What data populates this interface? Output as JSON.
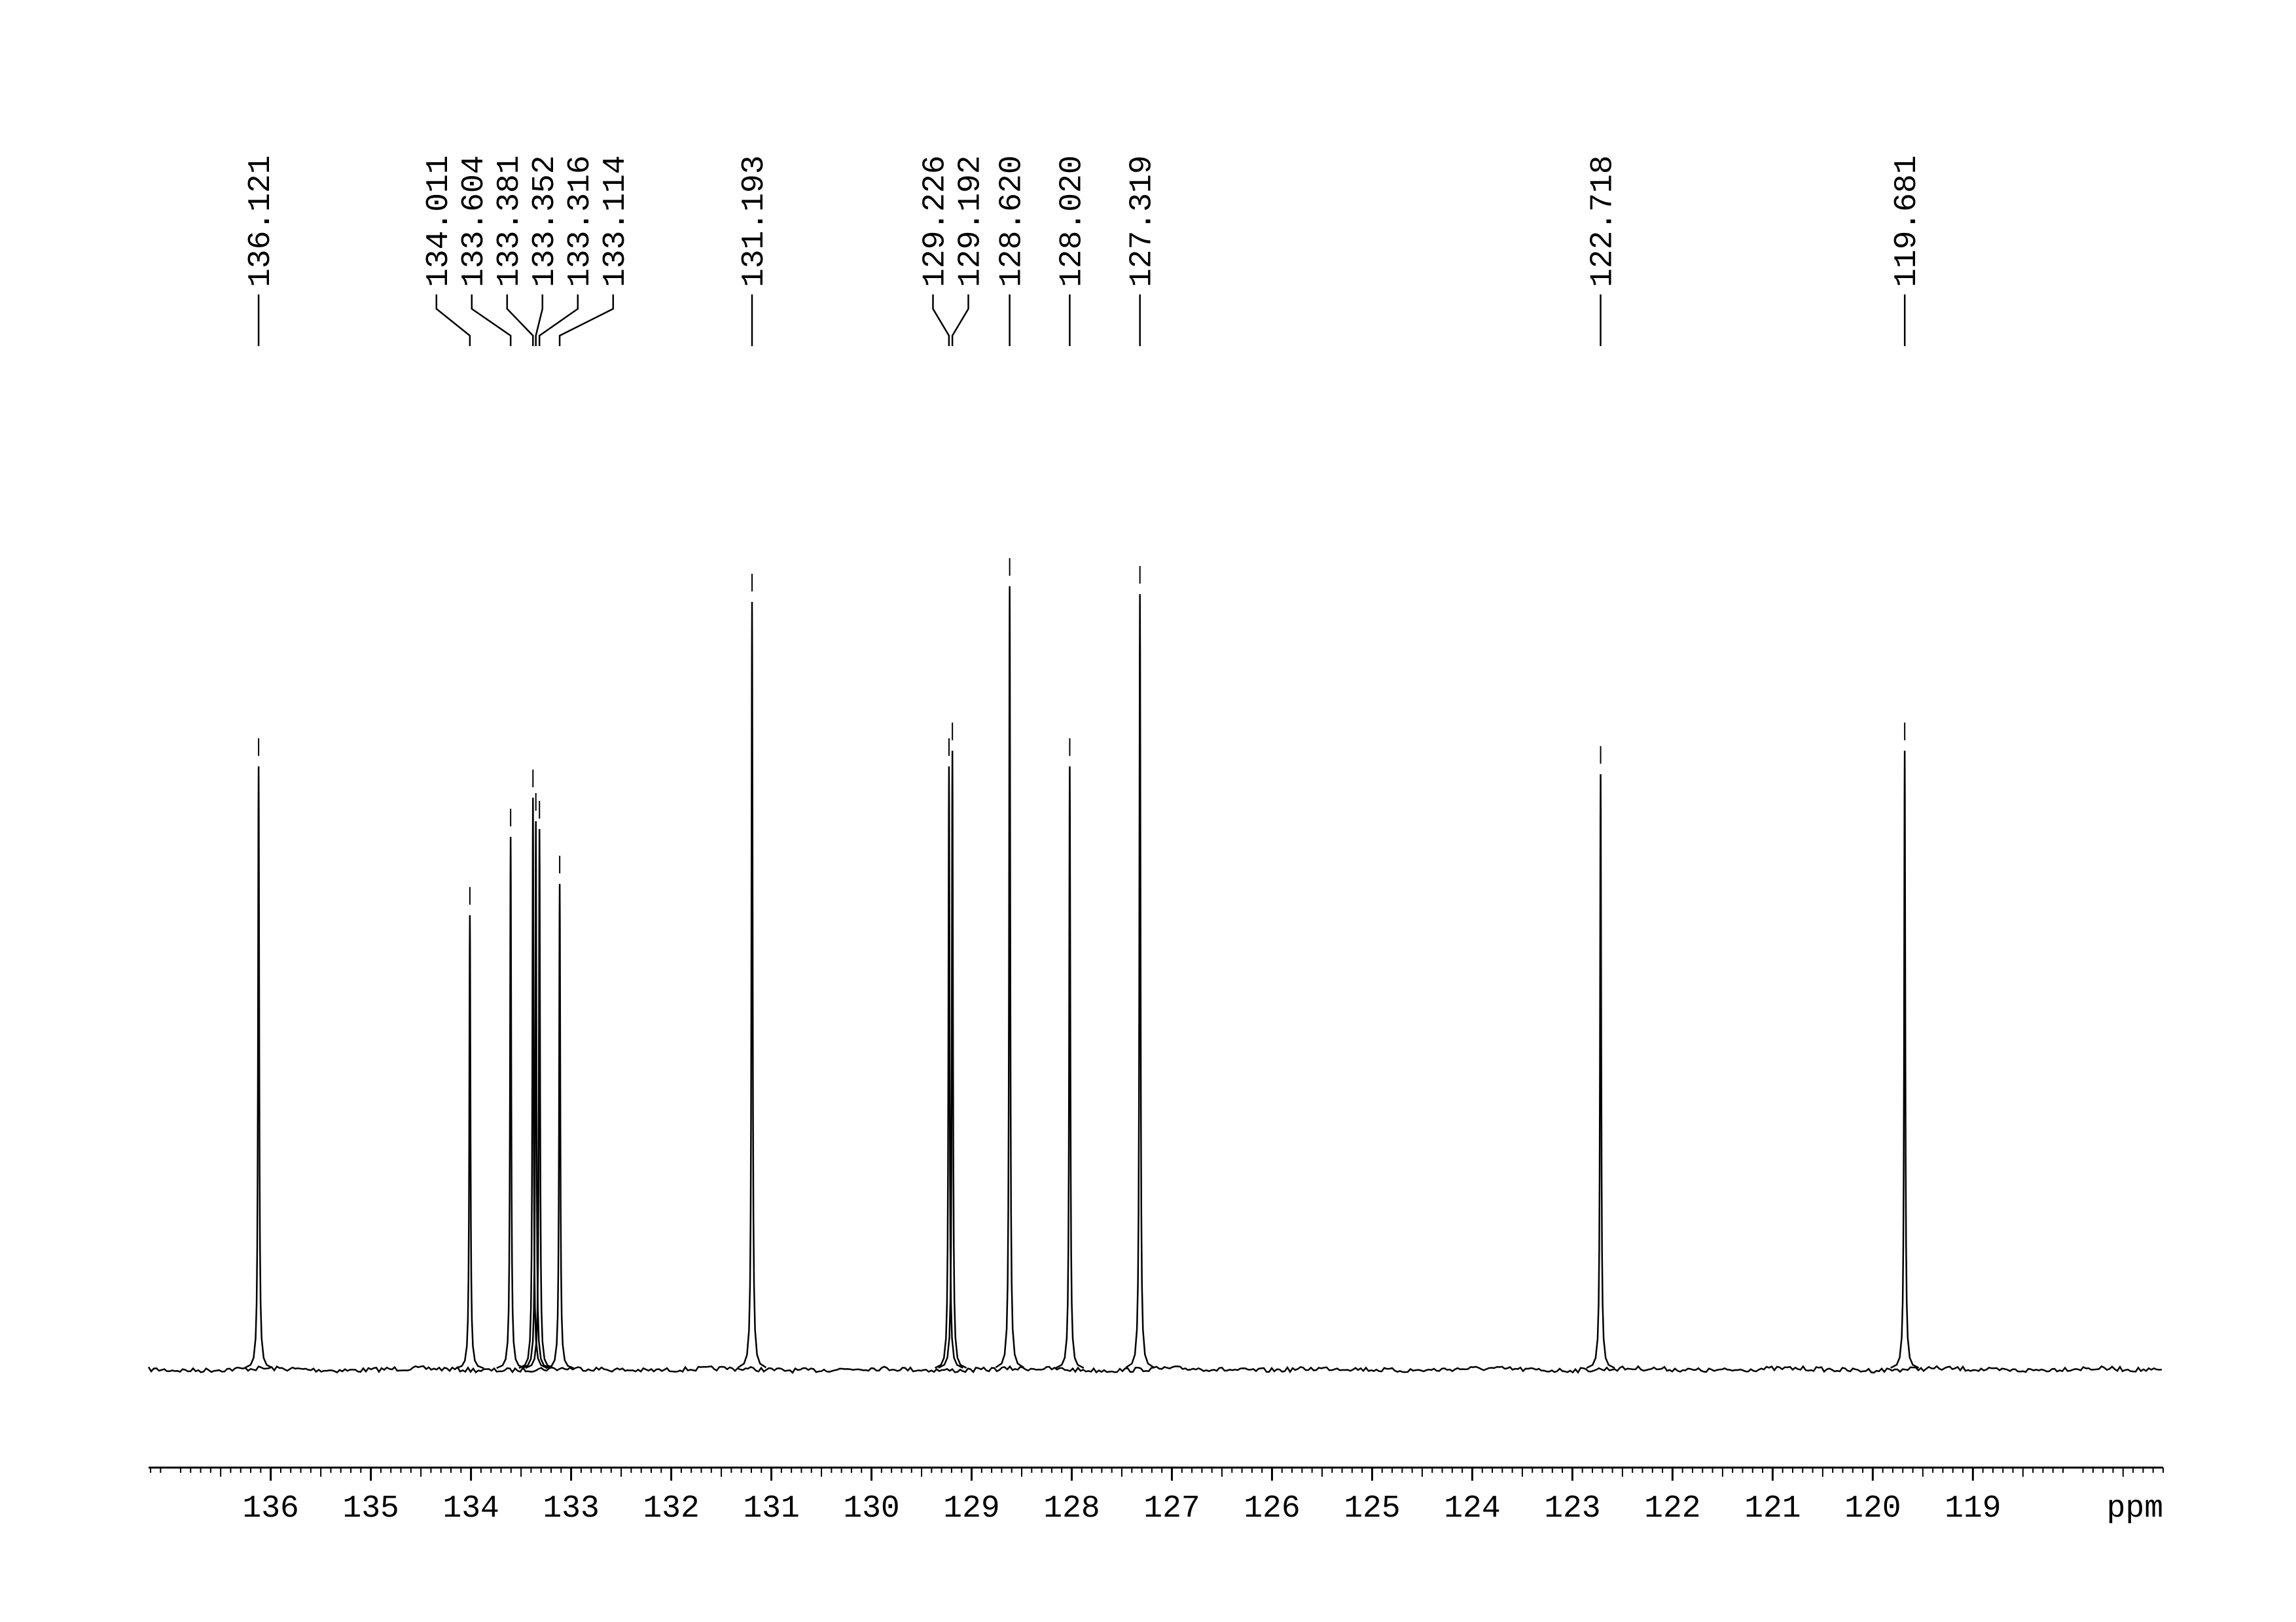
{
  "chart_data": {
    "type": "spectrum",
    "x": [
      136.121,
      134.011,
      133.604,
      133.381,
      133.352,
      133.316,
      133.114,
      131.193,
      129.226,
      129.192,
      128.62,
      128.02,
      127.319,
      122.718,
      119.681
    ],
    "x_labels": [
      "136.121",
      "134.011",
      "133.604",
      "133.381",
      "133.352",
      "133.316",
      "133.114",
      "131.193",
      "129.226",
      "129.192",
      "128.620",
      "128.020",
      "127.319",
      "122.718",
      "119.681"
    ],
    "values": [
      77,
      58,
      68,
      73,
      70,
      69,
      62,
      98,
      77,
      79,
      100,
      77,
      99,
      76,
      79
    ],
    "xlim": [
      137.22,
      117.1
    ],
    "ylim": [
      0,
      100
    ],
    "xticks": [
      136,
      135,
      134,
      133,
      132,
      131,
      130,
      129,
      128,
      127,
      126,
      125,
      124,
      123,
      122,
      121,
      120,
      119
    ],
    "xlabel": "ppm",
    "color": "#000000"
  }
}
